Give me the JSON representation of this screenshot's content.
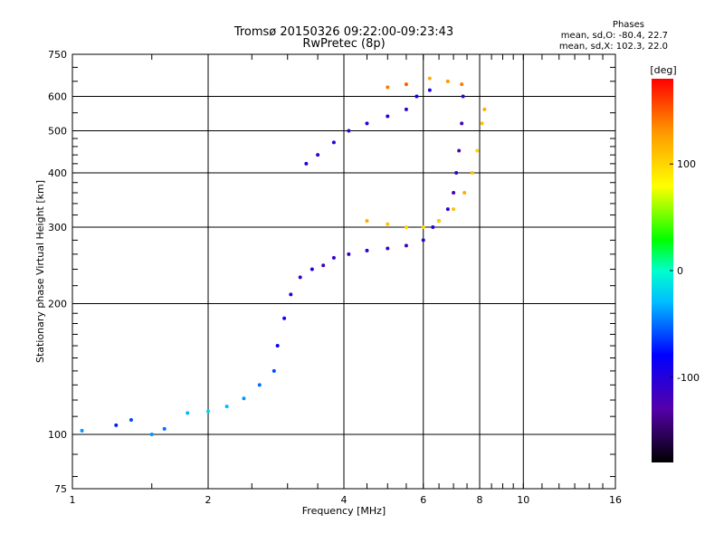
{
  "chart_data": {
    "type": "scatter",
    "title": "Tromsø 20150326 09:22:00-09:23:43",
    "subtitle": "RwPretec (8p)",
    "xlabel": "Frequency [MHz]",
    "ylabel": "Stationary phase Virtual Height [km]",
    "xscale": "log",
    "yscale": "log",
    "xlim": [
      1,
      16
    ],
    "ylim": [
      75,
      750
    ],
    "x_ticks": [
      "1",
      "2",
      "4",
      "6",
      "8",
      "10",
      "16"
    ],
    "y_ticks": [
      "75",
      "100",
      "200",
      "300",
      "400",
      "500",
      "600",
      "750"
    ],
    "grid": true,
    "colorbar": {
      "label": "[deg]",
      "range": [
        -180,
        180
      ],
      "ticks": [
        "100",
        "0",
        "-100"
      ],
      "colormap": "rainbow"
    },
    "phase_info": {
      "title": "Phases",
      "o_line": "mean, sd,O: -80.4, 22.7",
      "x_line": "mean, sd,X: 102.3, 22.0"
    },
    "series": [
      {
        "points": [
          [
            1.05,
            102,
            -40
          ],
          [
            1.25,
            105,
            -70
          ],
          [
            1.35,
            108,
            -60
          ],
          [
            1.5,
            100,
            -40
          ],
          [
            1.6,
            103,
            -50
          ],
          [
            1.8,
            112,
            -30
          ],
          [
            2.0,
            113,
            -20
          ],
          [
            2.2,
            116,
            -30
          ],
          [
            2.4,
            121,
            -40
          ],
          [
            2.6,
            130,
            -50
          ],
          [
            2.8,
            140,
            -60
          ],
          [
            2.85,
            160,
            -80
          ],
          [
            2.95,
            185,
            -90
          ],
          [
            3.05,
            210,
            -100
          ],
          [
            3.2,
            230,
            -110
          ],
          [
            3.4,
            240,
            -100
          ],
          [
            3.6,
            245,
            -120
          ],
          [
            3.8,
            255,
            -110
          ],
          [
            4.1,
            260,
            -110
          ],
          [
            4.5,
            265,
            -100
          ],
          [
            5.0,
            268,
            -110
          ],
          [
            5.5,
            272,
            -120
          ],
          [
            6.0,
            280,
            -110
          ],
          [
            6.3,
            300,
            -100
          ],
          [
            6.5,
            310,
            -120
          ],
          [
            6.8,
            330,
            -110
          ],
          [
            7.0,
            360,
            -120
          ],
          [
            7.1,
            400,
            -110
          ],
          [
            7.2,
            450,
            -130
          ],
          [
            7.3,
            520,
            -120
          ],
          [
            7.35,
            600,
            -110
          ]
        ]
      },
      {
        "points": [
          [
            3.3,
            420,
            -100
          ],
          [
            3.5,
            440,
            -110
          ],
          [
            3.8,
            470,
            -100
          ],
          [
            4.1,
            500,
            -110
          ],
          [
            4.5,
            520,
            -100
          ],
          [
            5.0,
            540,
            -100
          ],
          [
            5.5,
            560,
            -110
          ],
          [
            5.8,
            600,
            -90
          ],
          [
            6.2,
            620,
            -100
          ]
        ]
      },
      {
        "points": [
          [
            4.5,
            310,
            120
          ],
          [
            5.0,
            305,
            110
          ],
          [
            5.5,
            300,
            100
          ],
          [
            6.0,
            300,
            100
          ],
          [
            6.5,
            310,
            100
          ],
          [
            7.0,
            330,
            110
          ],
          [
            7.4,
            360,
            120
          ],
          [
            7.7,
            400,
            110
          ],
          [
            7.9,
            450,
            100
          ],
          [
            8.1,
            520,
            110
          ],
          [
            8.2,
            560,
            120
          ]
        ]
      },
      {
        "points": [
          [
            5.0,
            630,
            140
          ],
          [
            5.5,
            640,
            150
          ],
          [
            6.2,
            660,
            120
          ],
          [
            6.8,
            650,
            130
          ],
          [
            7.3,
            640,
            140
          ]
        ]
      }
    ]
  }
}
